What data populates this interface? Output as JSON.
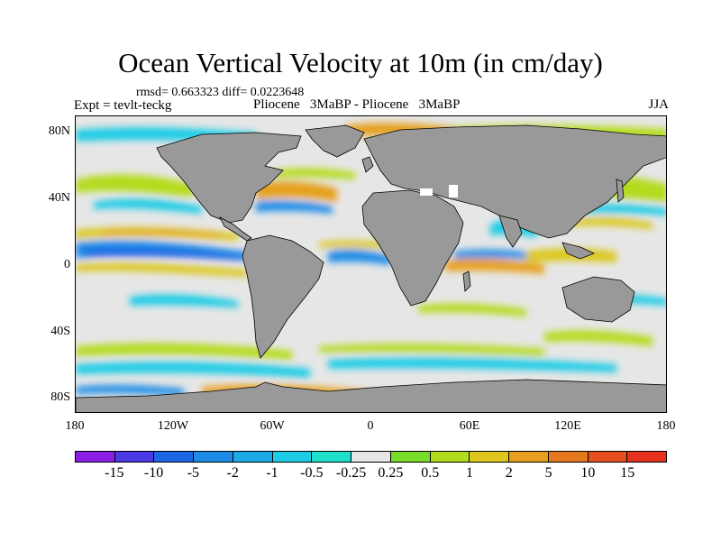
{
  "title": "Ocean Vertical Velocity at 10m (in cm/day)",
  "stats": "rmsd= 0.663323 diff= 0.0223648",
  "experiment": "Expt = tevlt-teckg",
  "comparison": "Pliocene   3MaBP - Pliocene   3MaBP",
  "season": "JJA",
  "lat_ticks": [
    "80N",
    "40N",
    "0",
    "40S",
    "80S"
  ],
  "lon_ticks": [
    "180",
    "120W",
    "60W",
    "0",
    "60E",
    "120E",
    "180"
  ],
  "colorbar": {
    "labels": [
      "-15",
      "-10",
      "-5",
      "-2",
      "-1",
      "-0.5",
      "-0.25",
      "0.25",
      "0.5",
      "1",
      "2",
      "5",
      "10",
      "15"
    ],
    "colors": [
      "#8a1ee6",
      "#4a3ae6",
      "#1e64e6",
      "#1e8ce6",
      "#1eaae6",
      "#1ecce6",
      "#1ee0cc",
      "#e6e6e6",
      "#78dc28",
      "#b4dc1e",
      "#dcc81e",
      "#e6a01e",
      "#e6781e",
      "#e6501e",
      "#e6321e"
    ]
  },
  "colors": {
    "land": "#999999",
    "ocean_background": "#e6e6e6"
  }
}
